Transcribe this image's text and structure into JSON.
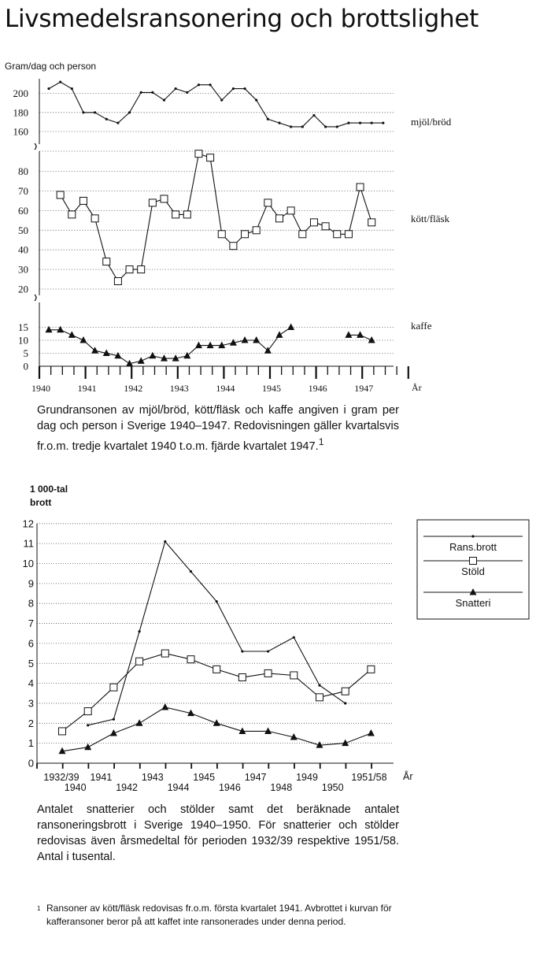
{
  "page": {
    "title": "Livsmedelsransonering och brottslighet",
    "caption1": "Grundransonen av mjöl/bröd, kött/fläsk och kaffe angiven i gram per dag och person i Sverige 1940–1947. Redovisningen gäller kvartalsvis fr.o.m. tredje kvartalet 1940 t.o.m. fjärde kvartalet 1947.",
    "caption1_note_mark": "1",
    "caption2": "Antalet snatterier och stölder samt det beräknade antalet ransoneringsbrott i Sverige 1940–1950. För snatterier och stölder redovisas även årsmedeltal för perioden 1932/39 respektive 1951/58. Antal i tusental.",
    "footnote_mark": "1",
    "footnote": "Ransoner av kött/fläsk redovisas fr.o.m. första kvartalet 1941. Avbrottet i kurvan för kafferansoner beror på att kaffet inte ransonerades under denna period."
  },
  "chart_data": [
    {
      "type": "line",
      "ylabel": "Gram/dag och person",
      "xlabel": "År",
      "x_ticks": [
        "1940",
        "1941",
        "1942",
        "1943",
        "1944",
        "1945",
        "1946",
        "1947"
      ],
      "x": [
        "1940 Q1",
        "1940 Q2",
        "1940 Q3",
        "1940 Q4",
        "1941 Q1",
        "1941 Q2",
        "1941 Q3",
        "1941 Q4",
        "1942 Q1",
        "1942 Q2",
        "1942 Q3",
        "1942 Q4",
        "1943 Q1",
        "1943 Q2",
        "1943 Q3",
        "1943 Q4",
        "1944 Q1",
        "1944 Q2",
        "1944 Q3",
        "1944 Q4",
        "1945 Q1",
        "1945 Q2",
        "1945 Q3",
        "1945 Q4",
        "1946 Q1",
        "1946 Q2",
        "1946 Q3",
        "1946 Q4",
        "1947 Q1",
        "1947 Q2",
        "1947 Q3",
        "1947 Q4"
      ],
      "y_ticks_upper": [
        160,
        180,
        200
      ],
      "y_ticks_middle": [
        20,
        30,
        40,
        50,
        60,
        70,
        80
      ],
      "y_ticks_lower": [
        0,
        5,
        10,
        15
      ],
      "axis_break": true,
      "series": [
        {
          "name": "mjöl/bröd",
          "marker": "dot",
          "range": [
            160,
            215
          ],
          "values": [
            [
              0,
              205
            ],
            [
              1,
              212
            ],
            [
              2,
              205
            ],
            [
              3,
              180
            ],
            [
              4,
              180
            ],
            [
              5,
              173
            ],
            [
              6,
              169
            ],
            [
              7,
              180
            ],
            [
              8,
              201
            ],
            [
              9,
              201
            ],
            [
              10,
              193
            ],
            [
              11,
              205
            ],
            [
              12,
              201
            ],
            [
              13,
              209
            ],
            [
              14,
              209
            ],
            [
              15,
              193
            ],
            [
              16,
              205
            ],
            [
              17,
              205
            ],
            [
              18,
              193
            ],
            [
              19,
              173
            ],
            [
              20,
              169
            ],
            [
              21,
              165
            ],
            [
              22,
              165
            ],
            [
              23,
              177
            ],
            [
              24,
              165
            ],
            [
              25,
              165
            ],
            [
              26,
              169
            ],
            [
              27,
              169
            ],
            [
              28,
              169
            ],
            [
              29,
              169
            ]
          ]
        },
        {
          "name": "kött/fläsk",
          "marker": "square",
          "range": [
            18,
            93
          ],
          "values": [
            [
              1,
              68
            ],
            [
              2,
              58
            ],
            [
              3,
              65
            ],
            [
              4,
              56
            ],
            [
              5,
              34
            ],
            [
              6,
              24
            ],
            [
              7,
              30
            ],
            [
              8,
              30
            ],
            [
              9,
              64
            ],
            [
              10,
              66
            ],
            [
              11,
              58
            ],
            [
              12,
              58
            ],
            [
              13,
              89
            ],
            [
              14,
              87
            ],
            [
              15,
              48
            ],
            [
              16,
              42
            ],
            [
              17,
              48
            ],
            [
              18,
              50
            ],
            [
              19,
              64
            ],
            [
              20,
              56
            ],
            [
              21,
              60
            ],
            [
              22,
              48
            ],
            [
              23,
              54
            ],
            [
              24,
              52
            ],
            [
              25,
              48
            ],
            [
              26,
              48
            ],
            [
              27,
              72
            ],
            [
              28,
              54
            ]
          ]
        },
        {
          "name": "kaffe",
          "marker": "triangle",
          "range": [
            0,
            16
          ],
          "values": [
            [
              0,
              14
            ],
            [
              1,
              14
            ],
            [
              2,
              12
            ],
            [
              3,
              10
            ],
            [
              4,
              6
            ],
            [
              5,
              5
            ],
            [
              6,
              4
            ],
            [
              7,
              1
            ],
            [
              8,
              2
            ],
            [
              9,
              4
            ],
            [
              10,
              3
            ],
            [
              11,
              3
            ],
            [
              12,
              4
            ],
            [
              13,
              8
            ],
            [
              14,
              8
            ],
            [
              15,
              8
            ],
            [
              16,
              9
            ],
            [
              17,
              10
            ],
            [
              18,
              10
            ],
            [
              19,
              6
            ],
            [
              20,
              12
            ],
            [
              21,
              15
            ],
            [
              26,
              12
            ],
            [
              27,
              12
            ],
            [
              28,
              10
            ]
          ]
        }
      ]
    },
    {
      "type": "line",
      "ylabel": "1 000-tal brott",
      "xlabel": "År",
      "ylim": [
        0,
        12
      ],
      "y_ticks": [
        0,
        1,
        2,
        3,
        4,
        5,
        6,
        7,
        8,
        9,
        10,
        11,
        12
      ],
      "categories": [
        "1932/39",
        "1940",
        "1941",
        "1942",
        "1943",
        "1944",
        "1945",
        "1946",
        "1947",
        "1948",
        "1949",
        "1950",
        "1951/58"
      ],
      "legend_position": "right",
      "series": [
        {
          "name": "Ransbrott",
          "marker": "dot",
          "points": [
            [
              1,
              1.9
            ],
            [
              2,
              2.2
            ],
            [
              3,
              6.6
            ],
            [
              4,
              11.1
            ],
            [
              5,
              9.6
            ],
            [
              6,
              8.1
            ],
            [
              7,
              5.6
            ],
            [
              8,
              5.6
            ],
            [
              9,
              6.3
            ],
            [
              10,
              3.9
            ],
            [
              11,
              3.0
            ]
          ]
        },
        {
          "name": "Stöld",
          "marker": "square",
          "points": [
            [
              0,
              1.6
            ],
            [
              1,
              2.6
            ],
            [
              2,
              3.8
            ],
            [
              3,
              5.1
            ],
            [
              4,
              5.5
            ],
            [
              5,
              5.2
            ],
            [
              6,
              4.7
            ],
            [
              7,
              4.3
            ],
            [
              8,
              4.5
            ],
            [
              9,
              4.4
            ],
            [
              10,
              3.3
            ],
            [
              11,
              3.6
            ],
            [
              12,
              4.7
            ]
          ]
        },
        {
          "name": "Snatteri",
          "marker": "triangle",
          "points": [
            [
              0,
              0.6
            ],
            [
              1,
              0.8
            ],
            [
              2,
              1.5
            ],
            [
              3,
              2.0
            ],
            [
              4,
              2.8
            ],
            [
              5,
              2.5
            ],
            [
              6,
              2.0
            ],
            [
              7,
              1.6
            ],
            [
              8,
              1.6
            ],
            [
              9,
              1.3
            ],
            [
              10,
              0.9
            ],
            [
              11,
              1.0
            ],
            [
              12,
              1.5
            ]
          ]
        }
      ],
      "legend": [
        "Rans.brott",
        "Stöld",
        "Snatteri"
      ]
    }
  ]
}
